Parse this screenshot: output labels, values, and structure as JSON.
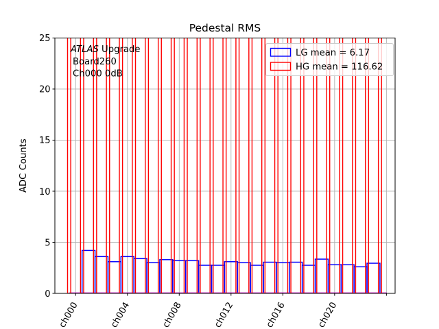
{
  "chart_data": {
    "type": "bar",
    "title": "Pedestal RMS",
    "ylabel": "ADC Counts",
    "xlabel": "",
    "ylim": [
      0,
      25
    ],
    "yticks": [
      0,
      5,
      10,
      15,
      20,
      25
    ],
    "xtick_labels": [
      "ch000",
      "ch004",
      "ch008",
      "ch012",
      "ch016",
      "ch020",
      ""
    ],
    "xtick_label_every": 4,
    "grid": true,
    "categories": [
      "ch000",
      "ch001",
      "ch002",
      "ch003",
      "ch004",
      "ch005",
      "ch006",
      "ch007",
      "ch008",
      "ch009",
      "ch010",
      "ch011",
      "ch012",
      "ch013",
      "ch014",
      "ch015",
      "ch016",
      "ch017",
      "ch018",
      "ch019",
      "ch020",
      "ch021",
      "ch022",
      "ch023"
    ],
    "series": [
      {
        "name": "LG",
        "legend_label": "LG mean = 6.17",
        "color": "#0000ff",
        "style": "outlined-bar",
        "values": [
          null,
          4.2,
          3.6,
          3.1,
          3.6,
          3.4,
          3.0,
          3.3,
          3.2,
          3.2,
          2.75,
          2.75,
          3.1,
          3.0,
          2.75,
          3.05,
          3.0,
          3.05,
          2.75,
          3.35,
          2.8,
          2.8,
          2.6,
          2.95
        ],
        "off_scale_channels": [
          "ch000"
        ]
      },
      {
        "name": "HG",
        "legend_label": "HG mean = 116.62",
        "color": "#ff0000",
        "style": "outlined-bar-narrow",
        "all_off_scale": true,
        "boundary_bar_count": 25
      }
    ],
    "legend": {
      "position": "upper right",
      "entries": [
        {
          "label": "LG mean = 6.17",
          "color": "#0000ff"
        },
        {
          "label": "HG mean = 116.62",
          "color": "#ff0000"
        }
      ]
    },
    "annotation": {
      "line1_italic": "ATLAS",
      "line1_rest": " Upgrade",
      "line2": "Board260",
      "line3": "Ch000 0dB"
    },
    "colors": {
      "grid": "#b0b0b0",
      "lg": "#0000ff",
      "hg": "#ff0000",
      "bar_bottom_overlap": "#cc22cc",
      "axis": "#000000",
      "legend_border": "#cccccc"
    },
    "notes": "All HG bars and the ch000 LG bar exceed the y-axis range and are clipped at the plot top."
  }
}
